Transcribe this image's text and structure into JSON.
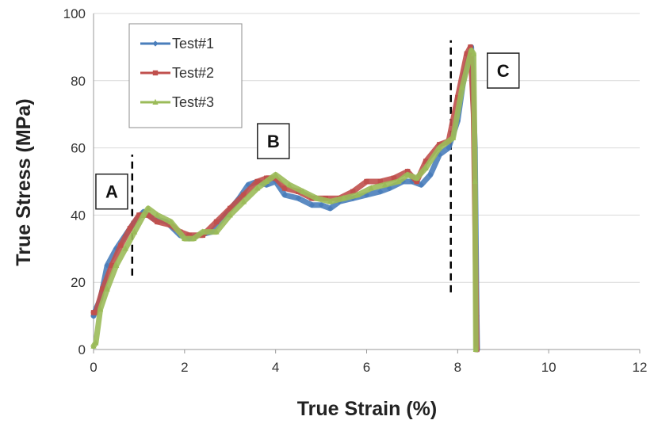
{
  "chart_data": {
    "type": "line",
    "xlabel": "True Strain (%)",
    "ylabel": "True Stress (MPa)",
    "xlim": [
      0,
      12
    ],
    "ylim": [
      0,
      100
    ],
    "xticks": [
      0,
      2,
      4,
      6,
      8,
      10,
      12
    ],
    "yticks": [
      0,
      20,
      40,
      60,
      80,
      100
    ],
    "grid": "horizontal",
    "legend_position": "top-left",
    "series": [
      {
        "name": "Test#1",
        "color": "#4a7ebb",
        "marker": "diamond",
        "points": [
          [
            0,
            10
          ],
          [
            0.05,
            12
          ],
          [
            0.15,
            15
          ],
          [
            0.3,
            25
          ],
          [
            0.5,
            30
          ],
          [
            0.7,
            34
          ],
          [
            0.9,
            38
          ],
          [
            1.1,
            41
          ],
          [
            1.3,
            39
          ],
          [
            1.6,
            38
          ],
          [
            1.9,
            34
          ],
          [
            2.1,
            33
          ],
          [
            2.3,
            34
          ],
          [
            2.6,
            35
          ],
          [
            2.9,
            40
          ],
          [
            3.2,
            45
          ],
          [
            3.4,
            49
          ],
          [
            3.6,
            50
          ],
          [
            3.8,
            49
          ],
          [
            4.0,
            50
          ],
          [
            4.2,
            46
          ],
          [
            4.5,
            45
          ],
          [
            4.8,
            43
          ],
          [
            5.0,
            43
          ],
          [
            5.2,
            42
          ],
          [
            5.4,
            44
          ],
          [
            5.7,
            45
          ],
          [
            6.0,
            46
          ],
          [
            6.3,
            47
          ],
          [
            6.5,
            48
          ],
          [
            6.8,
            50
          ],
          [
            7.0,
            50
          ],
          [
            7.2,
            49
          ],
          [
            7.4,
            52
          ],
          [
            7.6,
            58
          ],
          [
            7.8,
            60
          ],
          [
            8.0,
            68
          ],
          [
            8.15,
            82
          ],
          [
            8.3,
            90
          ],
          [
            8.38,
            60
          ],
          [
            8.42,
            10
          ],
          [
            8.43,
            0
          ]
        ]
      },
      {
        "name": "Test#2",
        "color": "#c0504d",
        "marker": "square",
        "points": [
          [
            0,
            11
          ],
          [
            0.05,
            11
          ],
          [
            0.2,
            18
          ],
          [
            0.4,
            25
          ],
          [
            0.6,
            31
          ],
          [
            0.8,
            36
          ],
          [
            1.0,
            40
          ],
          [
            1.2,
            40
          ],
          [
            1.4,
            38
          ],
          [
            1.7,
            37
          ],
          [
            1.9,
            35
          ],
          [
            2.1,
            34
          ],
          [
            2.4,
            34
          ],
          [
            2.7,
            38
          ],
          [
            3.0,
            42
          ],
          [
            3.3,
            46
          ],
          [
            3.6,
            50
          ],
          [
            3.8,
            51
          ],
          [
            4.0,
            51
          ],
          [
            4.2,
            48
          ],
          [
            4.5,
            47
          ],
          [
            4.8,
            45
          ],
          [
            5.1,
            45
          ],
          [
            5.4,
            45
          ],
          [
            5.7,
            47
          ],
          [
            6.0,
            50
          ],
          [
            6.3,
            50
          ],
          [
            6.6,
            51
          ],
          [
            6.9,
            53
          ],
          [
            7.1,
            50
          ],
          [
            7.3,
            56
          ],
          [
            7.6,
            61
          ],
          [
            7.8,
            62
          ],
          [
            8.0,
            75
          ],
          [
            8.2,
            88
          ],
          [
            8.28,
            90
          ],
          [
            8.35,
            70
          ],
          [
            8.4,
            20
          ],
          [
            8.42,
            0
          ]
        ]
      },
      {
        "name": "Test#3",
        "color": "#9bbb59",
        "marker": "triangle",
        "points": [
          [
            0,
            1
          ],
          [
            0.05,
            2
          ],
          [
            0.15,
            12
          ],
          [
            0.3,
            18
          ],
          [
            0.5,
            25
          ],
          [
            0.7,
            30
          ],
          [
            0.9,
            35
          ],
          [
            1.1,
            40
          ],
          [
            1.2,
            42
          ],
          [
            1.4,
            40
          ],
          [
            1.7,
            38
          ],
          [
            2.0,
            33
          ],
          [
            2.2,
            33
          ],
          [
            2.4,
            35
          ],
          [
            2.7,
            35
          ],
          [
            3.0,
            40
          ],
          [
            3.3,
            44
          ],
          [
            3.6,
            48
          ],
          [
            3.8,
            50
          ],
          [
            4.0,
            52
          ],
          [
            4.3,
            49
          ],
          [
            4.6,
            47
          ],
          [
            4.9,
            45
          ],
          [
            5.2,
            44
          ],
          [
            5.5,
            45
          ],
          [
            5.8,
            46
          ],
          [
            6.1,
            48
          ],
          [
            6.4,
            49
          ],
          [
            6.7,
            50
          ],
          [
            6.9,
            52
          ],
          [
            7.1,
            51
          ],
          [
            7.3,
            54
          ],
          [
            7.6,
            60
          ],
          [
            7.9,
            63
          ],
          [
            8.1,
            78
          ],
          [
            8.3,
            89
          ],
          [
            8.35,
            88
          ],
          [
            8.38,
            50
          ],
          [
            8.4,
            0
          ]
        ]
      }
    ],
    "annotations": [
      {
        "label": "A",
        "x": 0.4,
        "y": 47
      },
      {
        "label": "B",
        "x": 3.95,
        "y": 62
      },
      {
        "label": "C",
        "x": 9.0,
        "y": 83
      }
    ],
    "dashed_lines": [
      {
        "x": 0.85,
        "y_from": 22,
        "y_to": 58
      },
      {
        "x": 7.85,
        "y_from": 17,
        "y_to": 92
      }
    ]
  }
}
